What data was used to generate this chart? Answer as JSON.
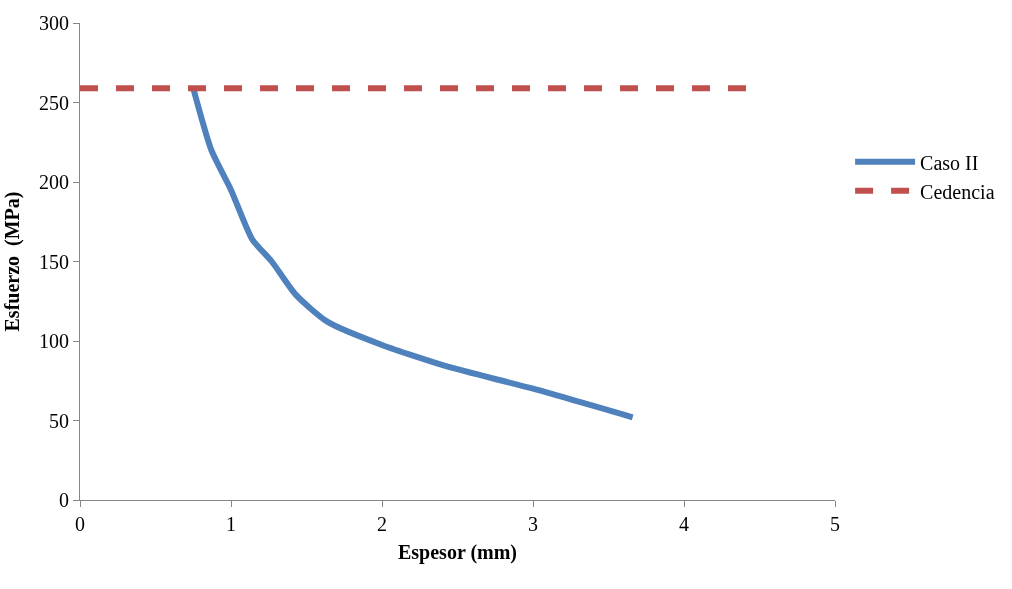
{
  "chart_data": {
    "type": "line",
    "xlabel": "Espesor (mm)",
    "ylabel": "Esfuerzo  (MPa)",
    "series": [
      {
        "name": "Caso II",
        "color": "#4f81bd",
        "line_style": "solid",
        "x": [
          0.75,
          0.87,
          1.0,
          1.14,
          1.27,
          1.43,
          1.64,
          2.0,
          2.43,
          3.0,
          3.66
        ],
        "values": [
          259,
          220,
          195,
          164,
          150,
          129,
          112,
          97.5,
          84,
          70,
          52
        ]
      },
      {
        "name": "Cedencia",
        "color": "#c0504d",
        "line_style": "dashed",
        "x": [
          0,
          4.42
        ],
        "values": [
          259,
          259
        ]
      }
    ],
    "xlim": [
      0,
      5
    ],
    "xticks": [
      0,
      1,
      2,
      3,
      4,
      5
    ],
    "ylim": [
      0,
      300
    ],
    "yticks": [
      0,
      50,
      100,
      150,
      200,
      250,
      300
    ],
    "grid": false,
    "legend": "right",
    "marker": "none"
  }
}
